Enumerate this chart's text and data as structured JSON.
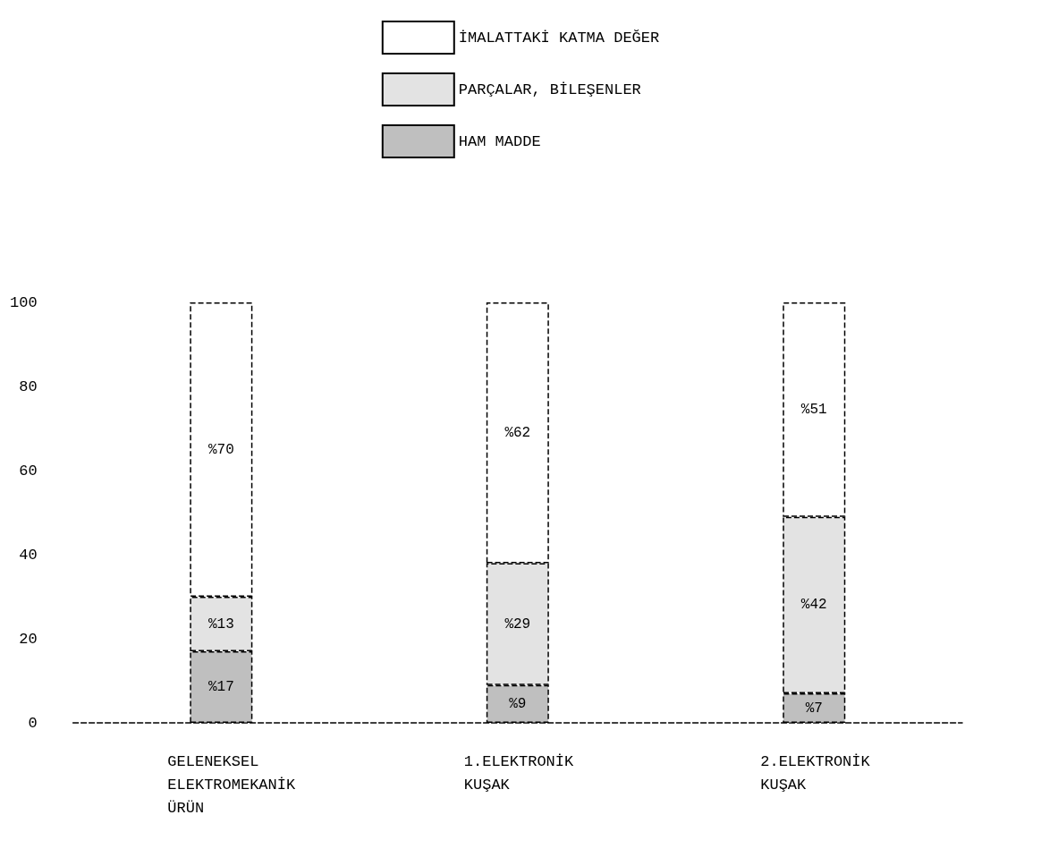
{
  "chart_data": {
    "type": "bar",
    "stacked": true,
    "categories": [
      "GELENEKSEL\nELEKTROMEKANİK\nÜRÜN",
      "1.ELEKTRONİK\nKUŞAK",
      "2.ELEKTRONİK\nKUŞAK"
    ],
    "series": [
      {
        "name": "HAM MADDE",
        "color": "#bfbfbf",
        "values": [
          17,
          9,
          7
        ],
        "value_labels": [
          "%17",
          "%9",
          "%7"
        ]
      },
      {
        "name": "PARÇALAR, BİLEŞENLER",
        "color": "#e3e3e3",
        "values": [
          13,
          29,
          42
        ],
        "value_labels": [
          "%13",
          "%29",
          "%42"
        ]
      },
      {
        "name": "İMALATTAKİ KATMA DEĞER",
        "color": "#ffffff",
        "values": [
          70,
          62,
          51
        ],
        "value_labels": [
          "%70",
          "%62",
          "%51"
        ]
      }
    ],
    "ylim": [
      0,
      100
    ],
    "yticks": [
      0,
      20,
      40,
      60,
      80,
      100
    ],
    "grid": false,
    "legend": "top"
  }
}
